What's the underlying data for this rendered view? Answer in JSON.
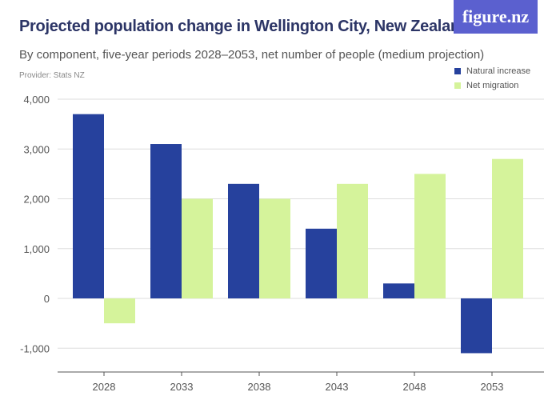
{
  "header": {
    "title": "Projected population change in Wellington City, New Zealand",
    "subtitle": "By component, five-year periods 2028–2053, net number of people (medium projection)",
    "provider": "Provider: Stats NZ",
    "logo": "figure.nz"
  },
  "chart_data": {
    "type": "bar",
    "title": "Projected population change in Wellington City, New Zealand",
    "categories": [
      "2028",
      "2033",
      "2038",
      "2043",
      "2048",
      "2053"
    ],
    "series": [
      {
        "name": "Natural increase",
        "color": "#26419d",
        "values": [
          3700,
          3100,
          2300,
          1400,
          300,
          -1100
        ]
      },
      {
        "name": "Net migration",
        "color": "#d5f39b",
        "values": [
          -500,
          2000,
          2000,
          2300,
          2500,
          2800
        ]
      }
    ],
    "ylim": [
      -1000,
      4000
    ],
    "yticks": [
      -1000,
      0,
      1000,
      2000,
      3000,
      4000
    ],
    "ytick_labels": [
      "-1,000",
      "0",
      "1,000",
      "2,000",
      "3,000",
      "4,000"
    ],
    "grid": true,
    "legend": "top-right"
  }
}
